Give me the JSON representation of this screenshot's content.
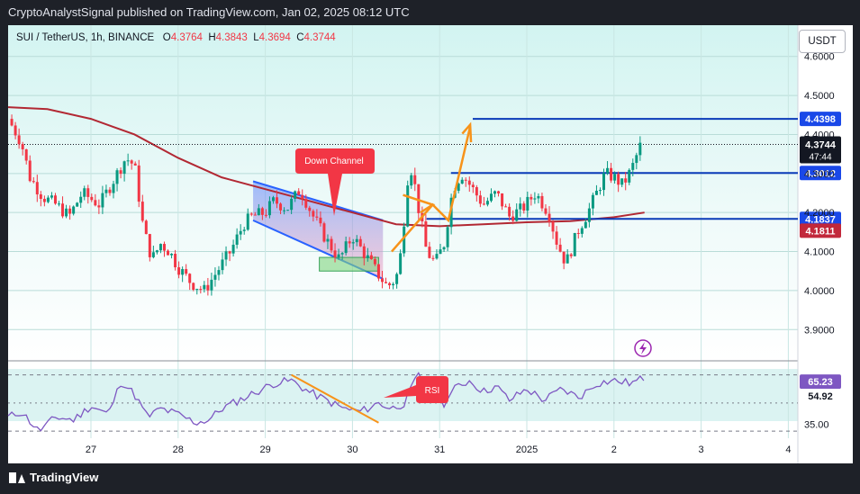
{
  "header": {
    "publish_text": "CryptoAnalystSignal published on TradingView.com, Jan 02, 2025 08:12 UTC"
  },
  "legend": {
    "symbol": "SUI / TetherUS, 1h, BINANCE",
    "o_label": "O",
    "o_value": "4.3764",
    "h_label": "H",
    "h_value": "4.3843",
    "l_label": "L",
    "l_value": "4.3694",
    "c_label": "C",
    "c_value": "4.3744"
  },
  "currency_button": "USDT",
  "footer": {
    "brand": "TradingView"
  },
  "colors": {
    "up": "#089981",
    "down": "#f23645",
    "ma": "#b22833",
    "level": "#0a3ab8",
    "channel": "#2962ff",
    "arrow": "#f7931a",
    "rsi": "#7e57c2",
    "bg_top": "#d6f6f3",
    "bg_bottom": "#ffffff"
  },
  "chart_data": {
    "type": "candlestick",
    "symbol": "SUI/USDT",
    "timeframe": "1h",
    "ylim": [
      3.82,
      4.68
    ],
    "y_ticks": [
      3.9,
      4.0,
      4.1,
      4.2,
      4.3,
      4.4,
      4.5,
      4.6
    ],
    "y_tick_labels": [
      "3.9000",
      "4.0000",
      "4.1000",
      "4.2000",
      "4.3000",
      "4.4000",
      "4.5000",
      "4.6000"
    ],
    "x_ticks": [
      {
        "label": "27",
        "day": 0
      },
      {
        "label": "28",
        "day": 1
      },
      {
        "label": "29",
        "day": 2
      },
      {
        "label": "30",
        "day": 3
      },
      {
        "label": "31",
        "day": 4
      },
      {
        "label": "2025",
        "day": 5
      },
      {
        "label": "2",
        "day": 6
      },
      {
        "label": "3",
        "day": 7
      },
      {
        "label": "4",
        "day": 8
      }
    ],
    "price_path": [
      [
        -0.95,
        4.44
      ],
      [
        -0.8,
        4.38
      ],
      [
        -0.7,
        4.29
      ],
      [
        -0.55,
        4.24
      ],
      [
        -0.4,
        4.22
      ],
      [
        -0.25,
        4.19
      ],
      [
        -0.1,
        4.25
      ],
      [
        0.1,
        4.22
      ],
      [
        0.25,
        4.28
      ],
      [
        0.4,
        4.34
      ],
      [
        0.5,
        4.32
      ],
      [
        0.6,
        4.16
      ],
      [
        0.7,
        4.08
      ],
      [
        0.8,
        4.12
      ],
      [
        0.9,
        4.1
      ],
      [
        1.0,
        4.06
      ],
      [
        1.15,
        4.02
      ],
      [
        1.3,
        4.0
      ],
      [
        1.45,
        4.05
      ],
      [
        1.6,
        4.1
      ],
      [
        1.75,
        4.17
      ],
      [
        1.85,
        4.19
      ],
      [
        2.0,
        4.2
      ],
      [
        2.1,
        4.23
      ],
      [
        2.25,
        4.21
      ],
      [
        2.4,
        4.26
      ],
      [
        2.55,
        4.19
      ],
      [
        2.7,
        4.13
      ],
      [
        2.85,
        4.08
      ],
      [
        3.0,
        4.14
      ],
      [
        3.15,
        4.09
      ],
      [
        3.3,
        4.04
      ],
      [
        3.4,
        4.01
      ],
      [
        3.5,
        4.03
      ],
      [
        3.55,
        4.09
      ],
      [
        3.6,
        4.2
      ],
      [
        3.65,
        4.33
      ],
      [
        3.7,
        4.29
      ],
      [
        3.75,
        4.22
      ],
      [
        3.85,
        4.1
      ],
      [
        3.95,
        4.07
      ],
      [
        4.05,
        4.12
      ],
      [
        4.15,
        4.26
      ],
      [
        4.25,
        4.3
      ],
      [
        4.35,
        4.27
      ],
      [
        4.5,
        4.22
      ],
      [
        4.65,
        4.25
      ],
      [
        4.8,
        4.19
      ],
      [
        4.95,
        4.21
      ],
      [
        5.1,
        4.25
      ],
      [
        5.25,
        4.2
      ],
      [
        5.35,
        4.12
      ],
      [
        5.45,
        4.07
      ],
      [
        5.5,
        4.1
      ],
      [
        5.6,
        4.16
      ],
      [
        5.7,
        4.2
      ],
      [
        5.8,
        4.25
      ],
      [
        5.9,
        4.3
      ],
      [
        6.0,
        4.29
      ],
      [
        6.1,
        4.27
      ],
      [
        6.2,
        4.31
      ],
      [
        6.3,
        4.37
      ]
    ],
    "moving_average": [
      [
        -0.95,
        4.47
      ],
      [
        -0.5,
        4.465
      ],
      [
        0.0,
        4.44
      ],
      [
        0.5,
        4.4
      ],
      [
        1.0,
        4.34
      ],
      [
        1.5,
        4.29
      ],
      [
        2.0,
        4.26
      ],
      [
        2.5,
        4.23
      ],
      [
        3.0,
        4.2
      ],
      [
        3.5,
        4.17
      ],
      [
        4.0,
        4.165
      ],
      [
        4.5,
        4.17
      ],
      [
        5.0,
        4.175
      ],
      [
        5.5,
        4.178
      ],
      [
        6.0,
        4.188
      ],
      [
        6.35,
        4.2
      ]
    ],
    "levels": [
      {
        "price": 4.4398,
        "label": "4.4398",
        "start_day": 4.38
      },
      {
        "price": 4.3012,
        "label": "4.3012",
        "start_day": 4.13
      },
      {
        "price": 4.1837,
        "label": "4.1837",
        "start_day": 3.85
      }
    ],
    "last_price": {
      "price": 4.3744,
      "label": "4.3744",
      "countdown": "47:44"
    },
    "ma_last": {
      "price": 4.1811,
      "label": "4.1811"
    },
    "annotations": {
      "down_channel_label": "Down Channel",
      "rsi_label": "RSI"
    },
    "rsi": {
      "ylim": [
        25,
        80
      ],
      "levels": [
        70,
        50,
        30
      ],
      "tick_labels": [
        "35.00",
        "54.92",
        "65.23"
      ],
      "last_value": 65.23,
      "secondary_value": 54.92,
      "path": [
        [
          -0.95,
          40
        ],
        [
          -0.8,
          44
        ],
        [
          -0.6,
          30
        ],
        [
          -0.4,
          40
        ],
        [
          -0.2,
          38
        ],
        [
          0.0,
          48
        ],
        [
          0.2,
          42
        ],
        [
          0.35,
          66
        ],
        [
          0.5,
          56
        ],
        [
          0.65,
          40
        ],
        [
          0.8,
          46
        ],
        [
          1.0,
          42
        ],
        [
          1.2,
          36
        ],
        [
          1.35,
          38
        ],
        [
          1.5,
          46
        ],
        [
          1.7,
          52
        ],
        [
          1.9,
          58
        ],
        [
          2.1,
          64
        ],
        [
          2.3,
          66
        ],
        [
          2.5,
          58
        ],
        [
          2.7,
          52
        ],
        [
          2.9,
          46
        ],
        [
          3.1,
          44
        ],
        [
          3.3,
          50
        ],
        [
          3.45,
          46
        ],
        [
          3.6,
          50
        ],
        [
          3.75,
          70
        ],
        [
          3.9,
          58
        ],
        [
          4.05,
          50
        ],
        [
          4.2,
          62
        ],
        [
          4.35,
          66
        ],
        [
          4.5,
          58
        ],
        [
          4.65,
          62
        ],
        [
          4.8,
          52
        ],
        [
          5.0,
          60
        ],
        [
          5.2,
          52
        ],
        [
          5.4,
          60
        ],
        [
          5.6,
          54
        ],
        [
          5.8,
          64
        ],
        [
          6.0,
          66
        ],
        [
          6.2,
          64
        ],
        [
          6.35,
          68
        ]
      ]
    }
  }
}
